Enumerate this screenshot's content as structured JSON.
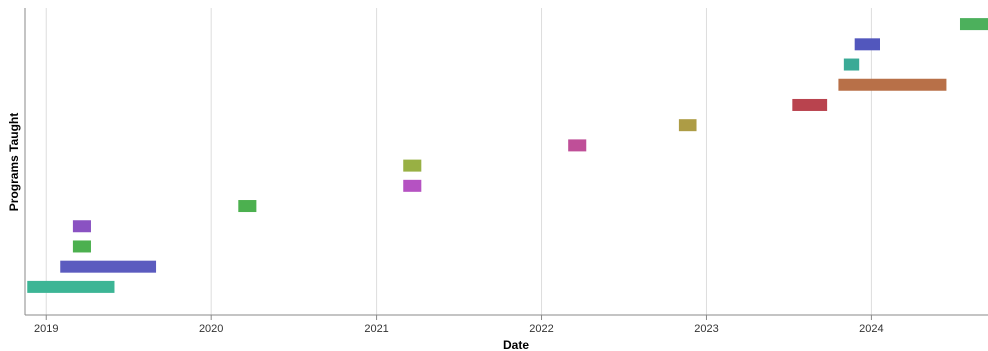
{
  "chart_data": {
    "type": "gantt",
    "xlabel": "Date",
    "ylabel": "Programs Taught",
    "x_ticks": [
      "2019",
      "2020",
      "2021",
      "2022",
      "2023",
      "2024"
    ],
    "xlim": [
      "2018-11-15",
      "2024-09-15"
    ],
    "grid": true,
    "legend": "none",
    "bars": [
      {
        "start": "2018-11-20",
        "end": "2019-06-01",
        "color": "#3cb595"
      },
      {
        "start": "2019-02-01",
        "end": "2019-09-01",
        "color": "#5b5bbf"
      },
      {
        "start": "2019-03-01",
        "end": "2019-04-10",
        "color": "#4cb04f"
      },
      {
        "start": "2019-03-01",
        "end": "2019-04-10",
        "color": "#8a52c2"
      },
      {
        "start": "2020-03-01",
        "end": "2020-04-10",
        "color": "#4cb04f"
      },
      {
        "start": "2021-03-01",
        "end": "2021-04-10",
        "color": "#b552c2"
      },
      {
        "start": "2021-03-01",
        "end": "2021-04-10",
        "color": "#98b044"
      },
      {
        "start": "2022-03-01",
        "end": "2022-04-10",
        "color": "#bf4f98"
      },
      {
        "start": "2022-11-01",
        "end": "2022-12-10",
        "color": "#ad9c45"
      },
      {
        "start": "2023-07-10",
        "end": "2023-09-25",
        "color": "#b9434e"
      },
      {
        "start": "2023-10-20",
        "end": "2024-06-15",
        "color": "#b87048"
      },
      {
        "start": "2023-11-01",
        "end": "2023-12-05",
        "color": "#3aaa96"
      },
      {
        "start": "2023-11-25",
        "end": "2024-01-20",
        "color": "#5257bd"
      },
      {
        "start": "2024-07-15",
        "end": "2024-09-15",
        "color": "#4cb05c"
      }
    ]
  }
}
